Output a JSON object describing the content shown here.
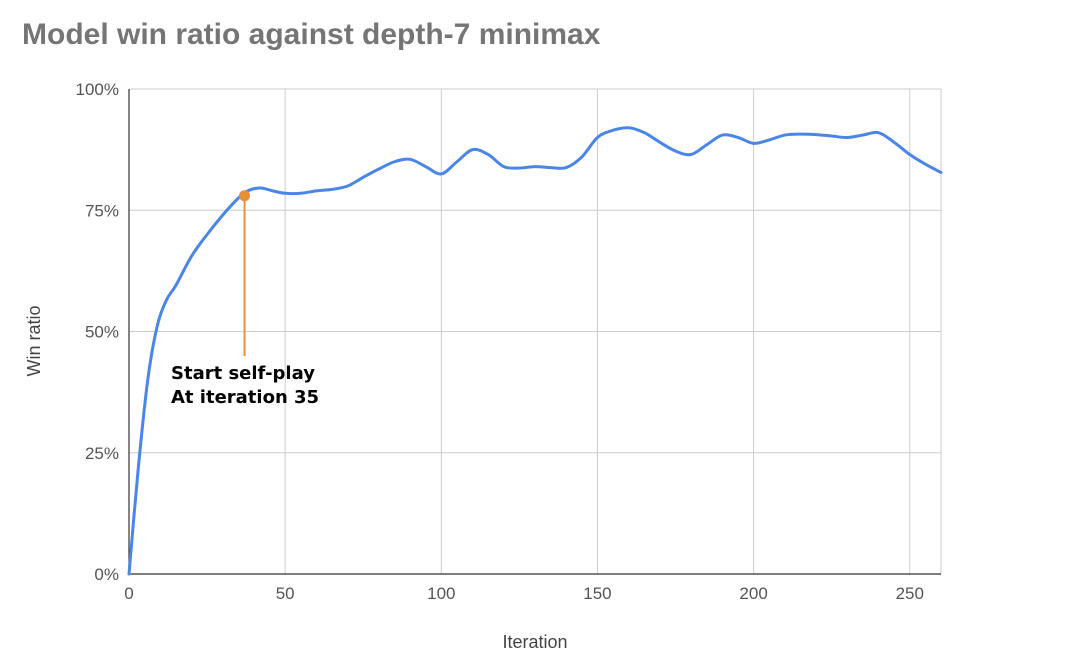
{
  "chart_data": {
    "type": "line",
    "title": "Model win ratio against depth-7 minimax",
    "xlabel": "Iteration",
    "ylabel": "Win ratio",
    "xlim": [
      0,
      260
    ],
    "ylim": [
      0,
      100
    ],
    "x_ticks": [
      "0",
      "50",
      "100",
      "150",
      "200",
      "250"
    ],
    "y_ticks": [
      "0%",
      "25%",
      "50%",
      "75%",
      "100%"
    ],
    "grid": true,
    "line_color": "#4a86e8",
    "series": [
      {
        "x": [
          0,
          3,
          6,
          9,
          12,
          15,
          20,
          25,
          30,
          35,
          38,
          42,
          46,
          50,
          55,
          60,
          65,
          70,
          75,
          80,
          85,
          90,
          95,
          100,
          105,
          110,
          115,
          120,
          125,
          130,
          135,
          140,
          145,
          150,
          155,
          160,
          165,
          170,
          175,
          180,
          185,
          190,
          195,
          200,
          205,
          210,
          215,
          220,
          225,
          230,
          235,
          240,
          245,
          250,
          255,
          260
        ],
        "y": [
          0,
          22,
          40,
          51,
          56.5,
          59.5,
          65.5,
          70,
          74,
          77.5,
          79,
          79.6,
          79,
          78.5,
          78.5,
          79,
          79.3,
          80,
          81.8,
          83.5,
          85,
          85.5,
          84,
          82.5,
          85,
          87.5,
          86.5,
          84,
          83.7,
          84,
          83.8,
          83.8,
          86,
          90,
          91.5,
          92,
          91,
          89,
          87.2,
          86.5,
          88.5,
          90.5,
          90,
          88.8,
          89.5,
          90.5,
          90.7,
          90.6,
          90.3,
          90,
          90.5,
          91,
          89,
          86.5,
          84.5,
          82.8
        ]
      }
    ],
    "annotation": {
      "x": 37,
      "y": 78,
      "lines": [
        "Start self-play",
        "At iteration 35"
      ],
      "color": "#e69138"
    }
  }
}
